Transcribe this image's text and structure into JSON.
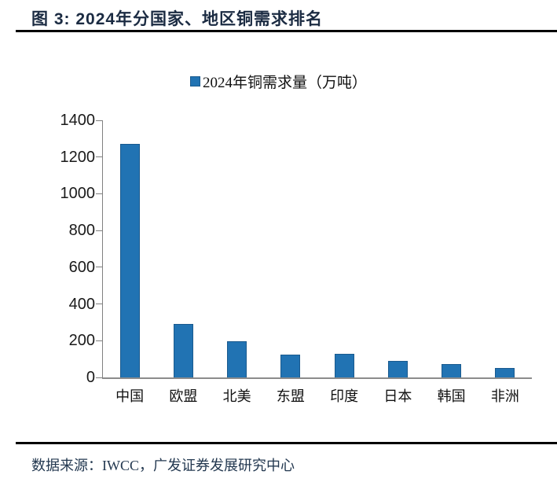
{
  "page": {
    "title": "图 3:  2024年分国家、地区铜需求排名",
    "source": "数据来源：IWCC，广发证券发展研究中心"
  },
  "chart_data": {
    "type": "bar",
    "title": "图 3: 2024年分国家、地区铜需求排名",
    "legend": "2024年铜需求量（万吨）",
    "legend_position": "top-center",
    "categories": [
      "中国",
      "欧盟",
      "北美",
      "东盟",
      "印度",
      "日本",
      "韩国",
      "非洲"
    ],
    "values": [
      1270,
      290,
      195,
      125,
      127,
      90,
      72,
      52
    ],
    "unit": "万吨",
    "xlabel": "",
    "ylabel": "",
    "ylim": [
      0,
      1400
    ],
    "yticks": [
      0,
      200,
      400,
      600,
      800,
      1000,
      1200,
      1400
    ],
    "grid": false,
    "bar_color": "#2173b3",
    "axis_color": "#808080"
  },
  "colors": {
    "title_text": "#1b2b42",
    "rule": "#000000",
    "bar_fill": "#2173b3",
    "bar_border": "#1a5a8e",
    "label_text": "#111111"
  }
}
